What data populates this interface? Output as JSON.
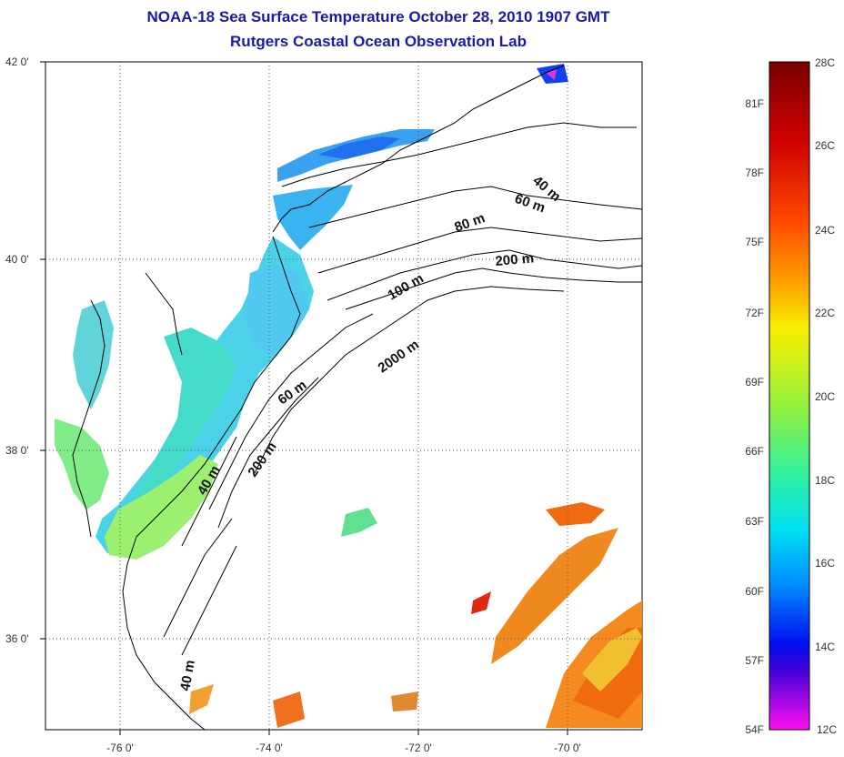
{
  "title": "NOAA-18 Sea Surface Temperature October 28, 2010 1907 GMT",
  "subtitle": "Rutgers Coastal Ocean Observation Lab",
  "map": {
    "lat_labels": [
      "42 0'",
      "40 0'",
      "38 0'",
      "36 0'"
    ],
    "lon_labels": [
      "-76 0'",
      "-74 0'",
      "-72 0'",
      "-70 0'"
    ],
    "contour_labels": [
      "40 m",
      "60 m",
      "80 m",
      "200 m",
      "100 m",
      "2000 m",
      "60 m",
      "200 m",
      "40 m",
      "40 m"
    ]
  },
  "colorbar": {
    "fahrenheit": [
      "81F",
      "78F",
      "75F",
      "72F",
      "69F",
      "66F",
      "63F",
      "60F",
      "57F",
      "54F"
    ],
    "celsius": [
      "28C",
      "26C",
      "24C",
      "22C",
      "20C",
      "18C",
      "16C",
      "14C",
      "12C"
    ],
    "colors": [
      "#7a0000",
      "#c40000",
      "#ff2a00",
      "#ff7a00",
      "#ffc400",
      "#e8f000",
      "#9cf000",
      "#3cf07a",
      "#00f0d8",
      "#00a8ff",
      "#0040ff",
      "#0000d8",
      "#8a00c8",
      "#ff00ff"
    ]
  },
  "sst_colors": {
    "cold": "#3aa0f0",
    "cool": "#4fd4e8",
    "mid": "#40e8c0",
    "warm": "#b0f060",
    "hot": "#f08a20",
    "hottest": "#f05a10"
  }
}
